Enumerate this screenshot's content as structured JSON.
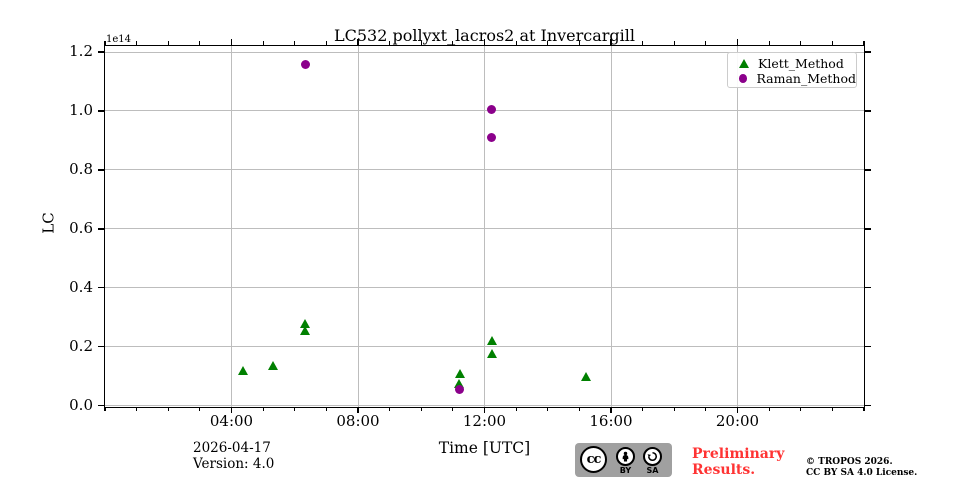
{
  "title": "LC532 pollyxt_lacros2 at Invercargill",
  "offset_label": "1e14",
  "ylabel": "LC",
  "xlabel": "Time [UTC]",
  "legend": [
    {
      "label": "Klett_Method",
      "marker": "triangle",
      "color": "#008000"
    },
    {
      "label": "Raman_Method",
      "marker": "circle",
      "color": "#8B008B"
    }
  ],
  "footer": {
    "date": "2026-04-17",
    "version": "Version: 4.0",
    "preliminary_line1": "Preliminary",
    "preliminary_line2": "Results.",
    "preliminary_color": "#ff3333",
    "copyright_line1": "© TROPOS 2026.",
    "copyright_line2": "CC BY SA 4.0 License.",
    "cc_badge": {
      "cc": "cc",
      "by": "BY",
      "sa": "SA"
    }
  },
  "chart_data": {
    "type": "scatter",
    "title": "LC532 pollyxt_lacros2 at Invercargill",
    "xlabel": "Time [UTC]",
    "ylabel": "LC",
    "y_offset_factor": "1e14",
    "xlim_hours": [
      0,
      24
    ],
    "ylim": [
      0.0,
      1.22
    ],
    "grid": true,
    "grid_color": "#bdbdbd",
    "legend_position": "upper right",
    "x_major_ticks": [
      {
        "hour": 4,
        "label": "04:00"
      },
      {
        "hour": 8,
        "label": "08:00"
      },
      {
        "hour": 12,
        "label": "12:00"
      },
      {
        "hour": 16,
        "label": "16:00"
      },
      {
        "hour": 20,
        "label": "20:00"
      }
    ],
    "x_minor_step_hours": 1,
    "y_ticks": [
      {
        "value": 0.0,
        "label": "0.0"
      },
      {
        "value": 0.2,
        "label": "0.2"
      },
      {
        "value": 0.4,
        "label": "0.4"
      },
      {
        "value": 0.6,
        "label": "0.6"
      },
      {
        "value": 0.8,
        "label": "0.8"
      },
      {
        "value": 1.0,
        "label": "1.0"
      },
      {
        "value": 1.2,
        "label": "1.2"
      }
    ],
    "series": [
      {
        "name": "Klett_Method",
        "marker": "triangle",
        "color": "#008000",
        "points": [
          {
            "time": "04:22",
            "hour": 4.36,
            "value": 0.12
          },
          {
            "time": "05:19",
            "hour": 5.31,
            "value": 0.136
          },
          {
            "time": "06:19",
            "hour": 6.32,
            "value": 0.277
          },
          {
            "time": "06:19",
            "hour": 6.32,
            "value": 0.255
          },
          {
            "time": "11:12",
            "hour": 11.21,
            "value": 0.107
          },
          {
            "time": "11:12",
            "hour": 11.2,
            "value": 0.075
          },
          {
            "time": "12:14",
            "hour": 12.23,
            "value": 0.219
          },
          {
            "time": "12:14",
            "hour": 12.23,
            "value": 0.178
          },
          {
            "time": "15:13",
            "hour": 15.21,
            "value": 0.098
          }
        ]
      },
      {
        "name": "Raman_Method",
        "marker": "circle",
        "color": "#8B008B",
        "points": [
          {
            "time": "06:21",
            "hour": 6.35,
            "value": 1.157
          },
          {
            "time": "12:14",
            "hour": 12.23,
            "value": 1.005
          },
          {
            "time": "12:13",
            "hour": 12.21,
            "value": 0.911
          },
          {
            "time": "11:12",
            "hour": 11.2,
            "value": 0.054
          }
        ]
      }
    ]
  }
}
